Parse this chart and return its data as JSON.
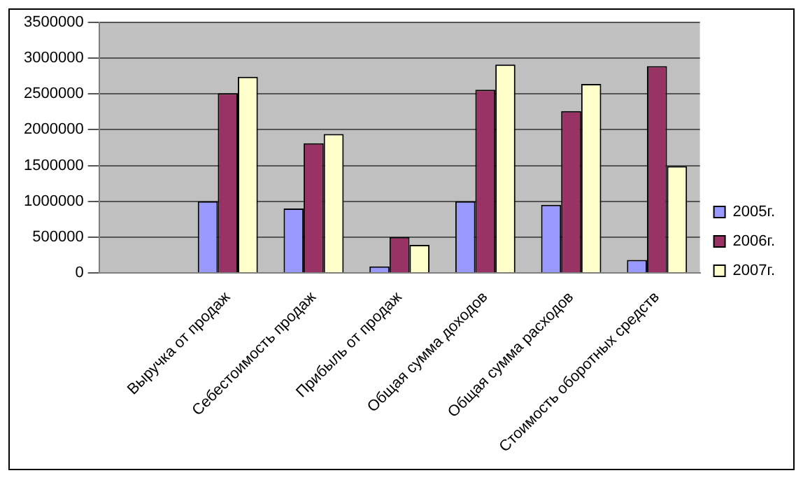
{
  "chart_data": {
    "type": "bar",
    "categories": [
      null,
      "Выручка от продаж",
      "Себестоимость продаж",
      "Прибыль от продаж",
      "Общая сумма доходов",
      "Общая сумма расходов",
      "Стоимость оборотных средств"
    ],
    "series": [
      {
        "name": "2005г.",
        "color": "#9999ff",
        "values": [
          null,
          1000000,
          900000,
          90000,
          1000000,
          950000,
          180000
        ]
      },
      {
        "name": "2006г.",
        "color": "#993366",
        "values": [
          null,
          2510000,
          1810000,
          500000,
          2560000,
          2260000,
          2890000
        ]
      },
      {
        "name": "2007г.",
        "color": "#ffffcc",
        "values": [
          null,
          2740000,
          1940000,
          390000,
          2910000,
          2640000,
          1490000
        ]
      }
    ],
    "ylim": [
      0,
      3500000
    ],
    "yticks": [
      0,
      500000,
      1000000,
      1500000,
      2000000,
      2500000,
      3000000,
      3500000
    ],
    "grid": "y",
    "legend": "right"
  }
}
